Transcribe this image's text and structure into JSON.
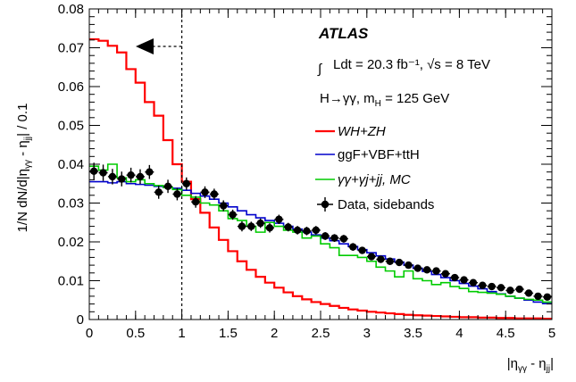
{
  "chart_data": {
    "type": "line",
    "ylabel": "1/N dN/d|η_{γγ} - η_{jj}| / 0.1",
    "xlabel": "|η_{γγ} - η_{jj}|",
    "xlim": [
      0,
      5
    ],
    "ylim": [
      0,
      0.08
    ],
    "x_ticks": [
      "0",
      "0.5",
      "1",
      "1.5",
      "2",
      "2.5",
      "3",
      "3.5",
      "4",
      "4.5",
      "5"
    ],
    "y_ticks": [
      "0",
      "0.01",
      "0.02",
      "0.03",
      "0.04",
      "0.05",
      "0.06",
      "0.07",
      "0.08"
    ],
    "bin_width": 0.1,
    "cut_value": 1.0,
    "atlas_label": "ATLAS",
    "lumi_label": "Ldt = 20.3 fb⁻¹, √s = 8 TeV",
    "higgs_label": "H→γγ, m_H = 125 GeV",
    "series": [
      {
        "name": "WH+ZH",
        "color": "#ff0000",
        "style": "histogram",
        "values": [
          0.0722,
          0.0718,
          0.0705,
          0.0688,
          0.0645,
          0.061,
          0.056,
          0.0525,
          0.0462,
          0.04,
          0.0355,
          0.031,
          0.0275,
          0.0237,
          0.0205,
          0.0176,
          0.015,
          0.0128,
          0.011,
          0.0095,
          0.0082,
          0.007,
          0.006,
          0.0052,
          0.0045,
          0.004,
          0.0035,
          0.003,
          0.0026,
          0.0023,
          0.002,
          0.0018,
          0.0016,
          0.0014,
          0.0012,
          0.0011,
          0.001,
          0.0009,
          0.0008,
          0.0007,
          0.0006,
          0.0006,
          0.0005,
          0.0005,
          0.0004,
          0.0004,
          0.0003,
          0.0003,
          0.0003,
          0.0002
        ]
      },
      {
        "name": "ggF+VBF+ttH",
        "color": "#0000cc",
        "style": "histogram",
        "values": [
          0.0355,
          0.0355,
          0.0352,
          0.0355,
          0.035,
          0.0348,
          0.0346,
          0.0343,
          0.034,
          0.0338,
          0.0333,
          0.0325,
          0.0318,
          0.031,
          0.03,
          0.029,
          0.028,
          0.027,
          0.0262,
          0.0255,
          0.0248,
          0.024,
          0.0233,
          0.0225,
          0.0218,
          0.021,
          0.0203,
          0.0195,
          0.0188,
          0.018,
          0.0172,
          0.0164,
          0.0156,
          0.0148,
          0.014,
          0.0132,
          0.0124,
          0.0116,
          0.0108,
          0.01,
          0.0093,
          0.0086,
          0.0079,
          0.0072,
          0.0066,
          0.006,
          0.0055,
          0.005,
          0.0045,
          0.0041
        ]
      },
      {
        "name": "γγ+γj+jj, MC",
        "color": "#00cc00",
        "style": "histogram",
        "values": [
          0.0395,
          0.0385,
          0.04,
          0.0365,
          0.0355,
          0.036,
          0.035,
          0.0345,
          0.034,
          0.0335,
          0.032,
          0.0315,
          0.03,
          0.0295,
          0.028,
          0.026,
          0.0255,
          0.024,
          0.0225,
          0.025,
          0.024,
          0.023,
          0.0225,
          0.021,
          0.0215,
          0.0195,
          0.0185,
          0.0165,
          0.0165,
          0.016,
          0.015,
          0.0135,
          0.0125,
          0.011,
          0.0125,
          0.0105,
          0.01,
          0.009,
          0.0095,
          0.0085,
          0.008,
          0.0072,
          0.007,
          0.0068,
          0.0065,
          0.006,
          0.0055,
          0.0052,
          0.005,
          0.0045
        ]
      },
      {
        "name": "Data, sidebands",
        "color": "#000000",
        "style": "points",
        "values": [
          0.0382,
          0.0378,
          0.0368,
          0.0362,
          0.0372,
          0.0368,
          0.038,
          0.0328,
          0.0343,
          0.0323,
          0.035,
          0.0303,
          0.0328,
          0.0323,
          0.0293,
          0.027,
          0.024,
          0.024,
          0.0248,
          0.0236,
          0.0258,
          0.0238,
          0.023,
          0.0228,
          0.023,
          0.0215,
          0.021,
          0.0208,
          0.0187,
          0.0178,
          0.0162,
          0.0155,
          0.015,
          0.0147,
          0.014,
          0.0132,
          0.0128,
          0.0125,
          0.0118,
          0.0108,
          0.0102,
          0.0095,
          0.0088,
          0.0085,
          0.0082,
          0.0075,
          0.0078,
          0.0068,
          0.006,
          0.0058
        ],
        "errors": [
          0.0022,
          0.0021,
          0.002,
          0.0019,
          0.0019,
          0.0019,
          0.0018,
          0.0017,
          0.0017,
          0.0016,
          0.0016,
          0.0015,
          0.0015,
          0.0014,
          0.0014,
          0.0013,
          0.0013,
          0.0012,
          0.0012,
          0.0012,
          0.0012,
          0.0011,
          0.0011,
          0.0011,
          0.0011,
          0.001,
          0.001,
          0.001,
          0.001,
          0.0009,
          0.0009,
          0.0009,
          0.0008,
          0.0008,
          0.0008,
          0.0008,
          0.0008,
          0.0007,
          0.0007,
          0.0007,
          0.0007,
          0.0006,
          0.0006,
          0.0006,
          0.0006,
          0.0006,
          0.0006,
          0.0005,
          0.0005,
          0.0005
        ]
      }
    ]
  }
}
